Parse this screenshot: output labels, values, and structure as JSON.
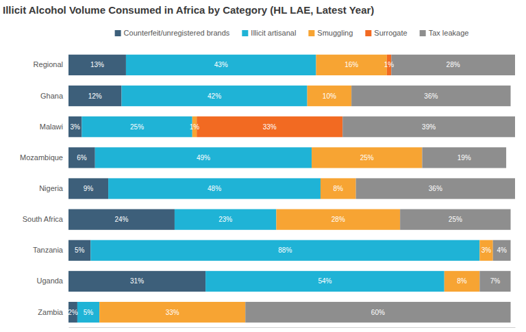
{
  "chart_data": {
    "type": "bar",
    "title": "Illicit Alcohol Volume Consumed in Africa by Category (HL LAE, Latest Year)",
    "orientation": "horizontal",
    "stacked": true,
    "data_labels": true,
    "legend": "top",
    "tick_labels": "y",
    "grid": false,
    "categories": [
      "Regional",
      "Ghana",
      "Malawi",
      "Mozambique",
      "Nigeria",
      "South Africa",
      "Tanzania",
      "Uganda",
      "Zambia"
    ],
    "xlim": [
      0,
      101
    ],
    "series": [
      {
        "name": "Counterfeit/unregistered brands",
        "color": "#3d5f7a",
        "values": [
          13,
          12,
          3,
          6,
          9,
          24,
          5,
          31,
          2
        ],
        "value_labels": [
          "13%",
          "12%",
          "3%",
          "6%",
          "9%",
          "24%",
          "5%",
          "31%",
          "2%"
        ]
      },
      {
        "name": "Illicit artisanal",
        "color": "#1fb3d6",
        "values": [
          43,
          42,
          25,
          49,
          48,
          23,
          88,
          54,
          5
        ],
        "value_labels": [
          "43%",
          "42%",
          "25%",
          "49%",
          "48%",
          "23%",
          "88%",
          "54%",
          "5%"
        ]
      },
      {
        "name": "Smuggling",
        "color": "#f7a433",
        "values": [
          16,
          10,
          1,
          25,
          8,
          28,
          3,
          8,
          33
        ],
        "value_labels": [
          "16%",
          "10%",
          "1%",
          "25%",
          "8%",
          "28%",
          "3%",
          "8%",
          "33%"
        ]
      },
      {
        "name": "Surrogate",
        "color": "#f26a22",
        "values": [
          1,
          null,
          33,
          null,
          null,
          null,
          null,
          null,
          null
        ],
        "value_labels": [
          "1%",
          null,
          "33%",
          null,
          null,
          null,
          null,
          null,
          null
        ]
      },
      {
        "name": "Tax leakage",
        "color": "#8e8e8e",
        "values": [
          28,
          36,
          39,
          19,
          36,
          25,
          4,
          7,
          60
        ],
        "value_labels": [
          "28%",
          "36%",
          "39%",
          "19%",
          "36%",
          "25%",
          "4%",
          "7%",
          "60%"
        ]
      }
    ]
  }
}
